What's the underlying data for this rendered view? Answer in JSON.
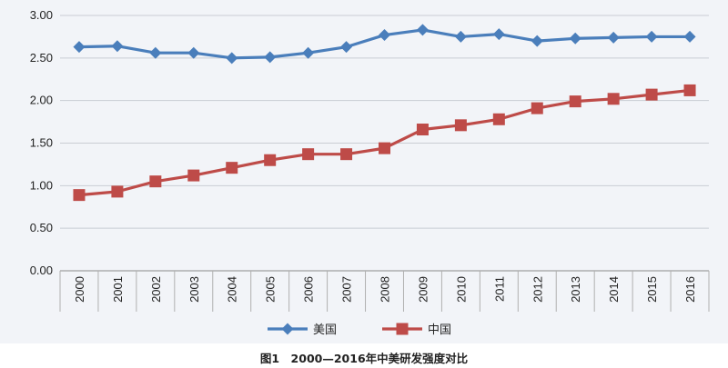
{
  "caption": "图1　2000—2016年中美研发强度对比",
  "chart_data": {
    "type": "line",
    "x": [
      "2000",
      "2001",
      "2002",
      "2003",
      "2004",
      "2005",
      "2006",
      "2007",
      "2008",
      "2009",
      "2010",
      "2011",
      "2012",
      "2013",
      "2014",
      "2015",
      "2016"
    ],
    "series": [
      {
        "name": "美国",
        "color": "#4a7ebb",
        "marker": "diamond",
        "values": [
          2.63,
          2.64,
          2.56,
          2.56,
          2.5,
          2.51,
          2.56,
          2.63,
          2.77,
          2.83,
          2.75,
          2.78,
          2.7,
          2.73,
          2.74,
          2.75,
          2.75
        ]
      },
      {
        "name": "中国",
        "color": "#be4b48",
        "marker": "square",
        "values": [
          0.89,
          0.93,
          1.05,
          1.12,
          1.21,
          1.3,
          1.37,
          1.37,
          1.44,
          1.66,
          1.71,
          1.78,
          1.91,
          1.99,
          2.02,
          2.07,
          2.12
        ]
      }
    ],
    "ylim": [
      0,
      3
    ],
    "yticks": [
      "0.00",
      "0.50",
      "1.00",
      "1.50",
      "2.00",
      "2.50",
      "3.00"
    ],
    "xlabel": "",
    "ylabel": "",
    "grid": "horizontal",
    "legend": "bottom"
  }
}
